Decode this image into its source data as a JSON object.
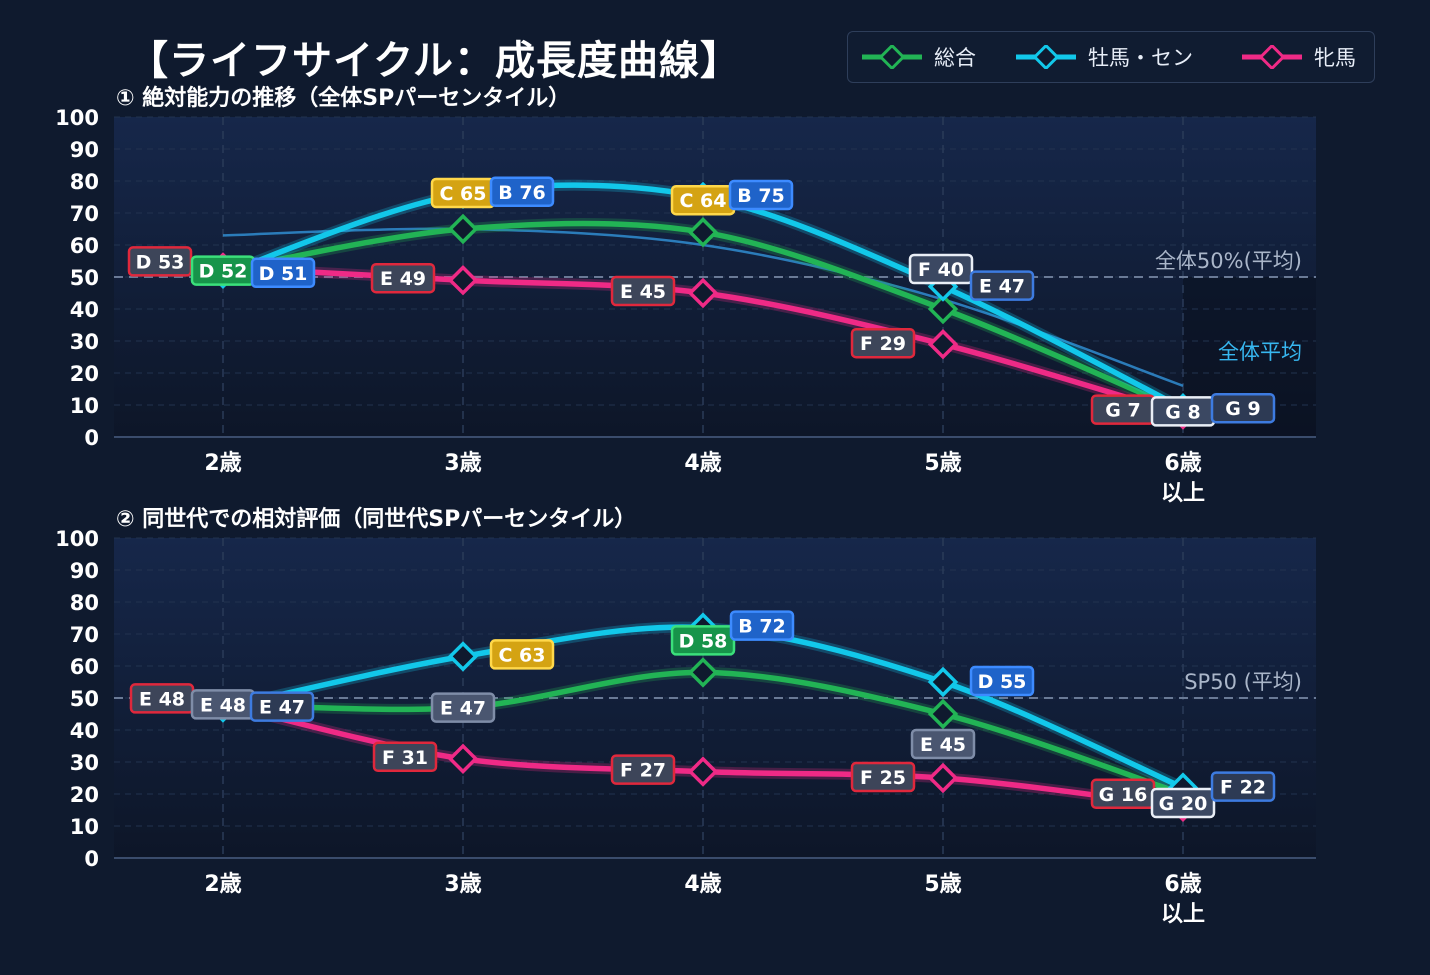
{
  "title": "【ライフサイクル：成長度曲線】",
  "legend": [
    {
      "name": "総合",
      "color": "#22b455"
    },
    {
      "name": "牡馬・セン",
      "color": "#12c8ea"
    },
    {
      "name": "牝馬",
      "color": "#ef2a86"
    }
  ],
  "chart_data": [
    {
      "type": "line",
      "title": "① 絶対能力の推移（全体SPパーセンタイル）",
      "categories": [
        "2歳",
        "3歳",
        "4歳",
        "5歳",
        "6歳\n以上"
      ],
      "ylim": [
        0,
        100
      ],
      "yticks": [
        0,
        10,
        20,
        30,
        40,
        50,
        60,
        70,
        80,
        90,
        100
      ],
      "grid": true,
      "series": [
        {
          "name": "総合",
          "values": [
            52,
            65,
            64,
            40,
            8
          ],
          "labels": [
            "D 52",
            "C 65",
            "C 64",
            "F 40",
            "G 8"
          ]
        },
        {
          "name": "牡馬・セン",
          "values": [
            51,
            76,
            75,
            47,
            9
          ],
          "labels": [
            "D 51",
            "B 76",
            "B 75",
            "E 47",
            "G 9"
          ]
        },
        {
          "name": "牝馬",
          "values": [
            53,
            49,
            45,
            29,
            7
          ],
          "labels": [
            "D 53",
            "E 49",
            "E 45",
            "F 29",
            "G 7"
          ]
        }
      ],
      "reference_line": {
        "value": 50,
        "label": "全体50%(平均)"
      },
      "average_curve": {
        "label": "全体平均",
        "values": [
          63,
          65,
          60,
          43,
          16
        ]
      }
    },
    {
      "type": "line",
      "title": "② 同世代での相対評価（同世代SPパーセンタイル）",
      "categories": [
        "2歳",
        "3歳",
        "4歳",
        "5歳",
        "6歳\n以上"
      ],
      "ylim": [
        0,
        100
      ],
      "yticks": [
        0,
        10,
        20,
        30,
        40,
        50,
        60,
        70,
        80,
        90,
        100
      ],
      "grid": true,
      "series": [
        {
          "name": "総合",
          "values": [
            48,
            47,
            58,
            45,
            20
          ],
          "labels": [
            "E 48",
            "E 47",
            "D 58",
            "E 45",
            "G 20"
          ]
        },
        {
          "name": "牡馬・セン",
          "values": [
            47,
            63,
            72,
            55,
            22
          ],
          "labels": [
            "E 47",
            "C 63",
            "B 72",
            "D 55",
            "F 22"
          ]
        },
        {
          "name": "牝馬",
          "values": [
            48,
            31,
            27,
            25,
            16
          ],
          "labels": [
            "E 48",
            "F 31",
            "F 27",
            "F 25",
            "G 16"
          ]
        }
      ],
      "reference_line": {
        "value": 50,
        "label": "SP50 (平均)"
      }
    }
  ]
}
